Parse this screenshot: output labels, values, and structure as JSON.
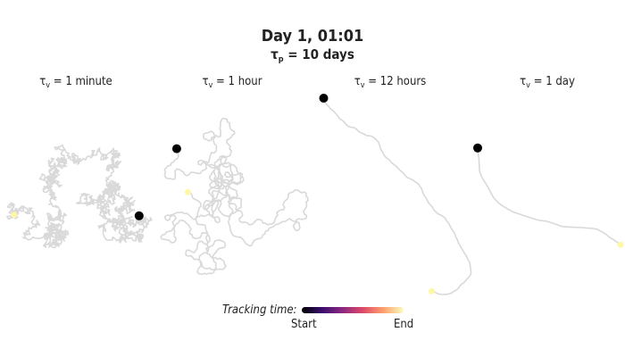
{
  "header": {
    "title": "Day 1, 01:01",
    "subtitle_symbol": "τ",
    "subtitle_sub": "p",
    "subtitle_value": " = 10 days"
  },
  "legend": {
    "title": "Tracking time:",
    "start_label": "Start",
    "end_label": "End",
    "colormap": [
      "#000004",
      "#3b0f70",
      "#8c2981",
      "#de4968",
      "#fe9f6d",
      "#fcfdbf"
    ]
  },
  "colors": {
    "trail": "#d9d9d9",
    "current_position": "#000000",
    "trail_end": "#fff7a8"
  },
  "chart_data": [
    {
      "type": "line",
      "symbol": "τ",
      "sub": "v",
      "value": " = 1 minute",
      "seed": 11,
      "steps": 1400,
      "step_len": 4.5,
      "persistence": 0.0
    },
    {
      "type": "line",
      "symbol": "τ",
      "sub": "v",
      "value": " = 1 hour",
      "seed": 23,
      "steps": 700,
      "step_len": 3.2,
      "persistence": 0.75
    },
    {
      "type": "line",
      "symbol": "τ",
      "sub": "v",
      "value": " = 12 hours",
      "seed": 37,
      "steps": 450,
      "step_len": 3.0,
      "persistence": 0.96
    },
    {
      "type": "line",
      "symbol": "τ",
      "sub": "v",
      "value": " = 1 day",
      "seed": 5,
      "steps": 380,
      "step_len": 3.0,
      "persistence": 0.985
    }
  ]
}
